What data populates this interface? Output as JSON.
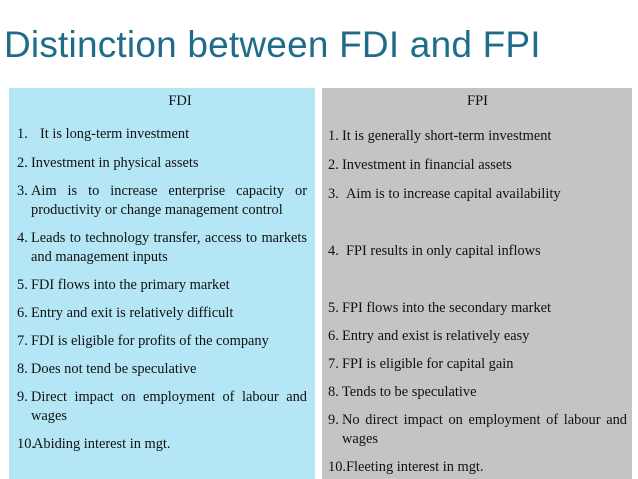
{
  "title": "Distinction between FDI and FPI",
  "fdi": {
    "heading": "FDI",
    "items": [
      {
        "num": "1.",
        "text": "It is long-term investment"
      },
      {
        "num": "2.",
        "text": "Investment in physical assets"
      },
      {
        "num": "3.",
        "text": "Aim is to increase enterprise capacity or productivity or change management control"
      },
      {
        "num": "4.",
        "text": "Leads to technology transfer, access to markets and management inputs"
      },
      {
        "num": "5.",
        "text": "FDI flows into the primary market"
      },
      {
        "num": "6.",
        "text": "Entry and exit is relatively difficult"
      },
      {
        "num": "7.",
        "text": "FDI is eligible for profits of the company"
      },
      {
        "num": "8.",
        "text": "Does not tend be speculative"
      },
      {
        "num": "9.",
        "text": "Direct impact on employment of labour and wages"
      },
      {
        "num": "10.",
        "text": "Abiding interest in mgt."
      }
    ]
  },
  "fpi": {
    "heading": "FPI",
    "items": [
      {
        "num": "1.",
        "text": "It is generally short-term investment"
      },
      {
        "num": "2.",
        "text": "Investment in financial assets"
      },
      {
        "num": "3.",
        "text": "Aim is to increase capital availability"
      },
      {
        "num": "4.",
        "text": "FPI results in only capital inflows"
      },
      {
        "num": "5.",
        "text": "FPI flows into the secondary market"
      },
      {
        "num": "6.",
        "text": "Entry and exist is relatively easy"
      },
      {
        "num": "7.",
        "text": "FPI is eligible for capital gain"
      },
      {
        "num": "8.",
        "text": "Tends to be speculative"
      },
      {
        "num": "9.",
        "text": "No direct impact on employment of labour and wages"
      },
      {
        "num": "10.",
        "text": "Fleeting interest in mgt."
      }
    ]
  }
}
